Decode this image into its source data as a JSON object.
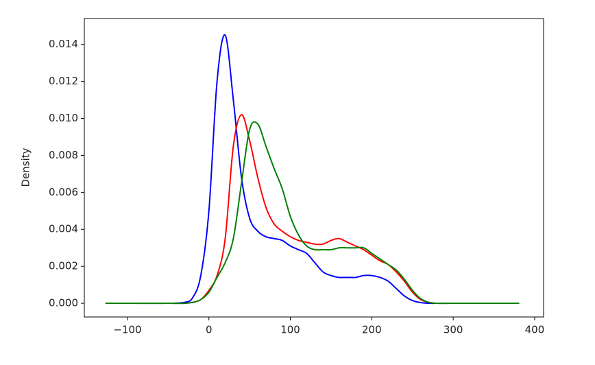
{
  "chart_data": {
    "type": "line",
    "ylabel": "Density",
    "x": [
      -127,
      -100,
      -50,
      -30,
      -20,
      -10,
      0,
      10,
      20,
      30,
      40,
      50,
      60,
      70,
      80,
      90,
      100,
      110,
      120,
      130,
      140,
      150,
      160,
      170,
      180,
      190,
      200,
      210,
      220,
      230,
      240,
      250,
      260,
      270,
      280,
      300,
      350,
      381
    ],
    "series": [
      {
        "color": "#0000ff",
        "values": [
          0,
          0,
          0,
          5e-05,
          0.0003,
          0.0015,
          0.005,
          0.012,
          0.0145,
          0.011,
          0.0068,
          0.0046,
          0.0039,
          0.0036,
          0.0035,
          0.0034,
          0.0031,
          0.0029,
          0.0027,
          0.0022,
          0.0017,
          0.0015,
          0.0014,
          0.0014,
          0.0014,
          0.0015,
          0.0015,
          0.0014,
          0.0012,
          0.0008,
          0.0004,
          0.00015,
          4e-05,
          0,
          0,
          0,
          0,
          0
        ]
      },
      {
        "color": "#ff0000",
        "values": [
          0,
          0,
          0,
          0,
          5e-05,
          0.0002,
          0.0007,
          0.0015,
          0.0035,
          0.0085,
          0.0102,
          0.0088,
          0.0068,
          0.0052,
          0.0043,
          0.0039,
          0.0036,
          0.0034,
          0.0033,
          0.0032,
          0.0032,
          0.0034,
          0.0035,
          0.0033,
          0.0031,
          0.0029,
          0.0026,
          0.0023,
          0.0021,
          0.0017,
          0.0012,
          0.0006,
          0.0002,
          5e-05,
          0,
          0,
          0,
          0
        ]
      },
      {
        "color": "#008000",
        "values": [
          0,
          0,
          0,
          0,
          5e-05,
          0.0002,
          0.0006,
          0.0014,
          0.0022,
          0.0035,
          0.0065,
          0.0094,
          0.0097,
          0.0085,
          0.0073,
          0.0062,
          0.0047,
          0.0037,
          0.0031,
          0.0029,
          0.0029,
          0.0029,
          0.003,
          0.003,
          0.003,
          0.003,
          0.0027,
          0.0024,
          0.0021,
          0.0018,
          0.0013,
          0.0007,
          0.00025,
          5e-05,
          0,
          0,
          0,
          0
        ]
      }
    ],
    "xlim": [
      -153,
      411
    ],
    "xticks": [
      {
        "value": -100,
        "label": "−100"
      },
      0,
      100,
      200,
      300,
      400
    ],
    "ylim": [
      -0.00074,
      0.0154
    ],
    "yticks": [
      {
        "value": 0,
        "label": "0.000"
      },
      {
        "value": 0.002,
        "label": "0.002"
      },
      {
        "value": 0.004,
        "label": "0.004"
      },
      {
        "value": 0.006,
        "label": "0.006"
      },
      {
        "value": 0.008,
        "label": "0.008"
      },
      {
        "value": 0.01,
        "label": "0.010"
      },
      {
        "value": 0.012,
        "label": "0.012"
      },
      {
        "value": 0.014,
        "label": "0.014"
      }
    ]
  }
}
